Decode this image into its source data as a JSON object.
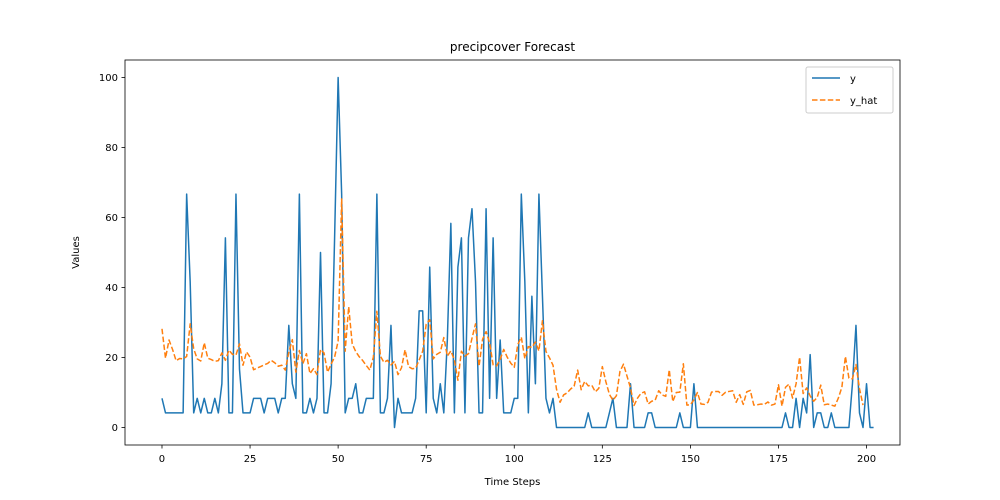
{
  "chart_data": {
    "type": "line",
    "title": "precipcover Forecast",
    "xlabel": "Time Steps",
    "ylabel": "Values",
    "xlim": [
      -10.5,
      209.5
    ],
    "ylim": [
      -5,
      105
    ],
    "xticks": [
      0,
      25,
      50,
      75,
      100,
      125,
      150,
      175,
      200
    ],
    "yticks": [
      0,
      20,
      40,
      60,
      80,
      100
    ],
    "grid": false,
    "legend_position": "top-right",
    "series": [
      {
        "name": "y",
        "color": "#1f77b4",
        "style": "solid",
        "values": [
          8.33,
          4.17,
          4.17,
          4.17,
          4.17,
          4.17,
          4.17,
          66.67,
          41.67,
          4.17,
          8.33,
          4.17,
          8.33,
          4.17,
          4.17,
          8.33,
          4.17,
          12.5,
          54.17,
          4.17,
          4.17,
          66.67,
          16.67,
          4.17,
          4.17,
          4.17,
          8.33,
          8.33,
          8.33,
          4.17,
          8.33,
          8.33,
          8.33,
          4.17,
          8.33,
          8.33,
          29.17,
          12.5,
          8.33,
          66.67,
          4.17,
          4.17,
          8.33,
          4.17,
          8.33,
          50,
          4.17,
          4.17,
          12.5,
          54.17,
          100,
          66.67,
          4.17,
          8.33,
          8.33,
          12.5,
          4.17,
          4.17,
          8.33,
          8.33,
          8.33,
          66.67,
          4.17,
          4.17,
          8.33,
          29.17,
          0,
          8.33,
          4.17,
          4.17,
          4.17,
          4.17,
          8.33,
          33.33,
          33.33,
          4.17,
          45.83,
          8.33,
          4.17,
          12.5,
          4.17,
          25,
          58.33,
          4.17,
          45.83,
          54.17,
          4.17,
          54.17,
          62.5,
          41.67,
          4.17,
          4.17,
          62.5,
          8.33,
          54.17,
          8.33,
          25,
          4.17,
          4.17,
          4.17,
          8.33,
          8.33,
          66.67,
          41.67,
          4.17,
          37.5,
          12.5,
          66.67,
          37.5,
          8.33,
          4.17,
          8.33,
          0,
          0,
          0,
          0,
          0,
          0,
          0,
          0,
          0,
          4.17,
          0,
          0,
          0,
          0,
          0,
          4.17,
          8.33,
          0,
          0,
          0,
          0,
          12.5,
          0,
          0,
          0,
          0,
          4.17,
          4.17,
          0,
          0,
          0,
          0,
          0,
          0,
          0,
          4.17,
          0,
          0,
          0,
          12.5,
          0,
          0,
          0,
          0,
          0,
          0,
          0,
          0,
          0,
          0,
          0,
          0,
          0,
          0,
          0,
          0,
          0,
          0,
          0,
          0,
          0,
          0,
          0,
          0,
          0,
          4.17,
          0,
          0,
          8.33,
          0,
          8.33,
          4.17,
          20.83,
          0,
          4.17,
          4.17,
          0,
          0,
          4.17,
          0,
          0,
          0,
          0,
          0,
          12.5,
          29.17,
          4.17,
          0,
          12.5,
          0,
          0
        ]
      },
      {
        "name": "y_hat",
        "color": "#ff7f0e",
        "style": "dashed",
        "values": [
          28.2,
          19.8,
          25,
          22.3,
          19.1,
          19.7,
          19.6,
          20.3,
          29.6,
          22.5,
          19.6,
          19,
          24.2,
          19.8,
          19.4,
          18.9,
          19.1,
          21.3,
          19.2,
          22.1,
          20.9,
          20.7,
          23.9,
          17.8,
          21.6,
          20.1,
          16.5,
          17,
          17.4,
          17.9,
          18.3,
          19.2,
          18.5,
          17.5,
          17.8,
          16.4,
          21.5,
          25.1,
          15.8,
          22,
          18.2,
          21.1,
          15.4,
          16.8,
          15.1,
          22.3,
          21.3,
          15.8,
          18.1,
          20.1,
          24.7,
          65.3,
          21.8,
          34.5,
          23.9,
          21.7,
          20.2,
          19.1,
          17.7,
          16.4,
          20.1,
          33.2,
          20.4,
          18.6,
          19.2,
          17.9,
          18.9,
          15.1,
          17.1,
          22.2,
          17.4,
          16.8,
          16.9,
          19.3,
          21.8,
          29.5,
          30.8,
          19.6,
          20.9,
          21.5,
          25.7,
          20.4,
          21.9,
          19.3,
          13.5,
          21.8,
          20.4,
          21.1,
          25.5,
          29.6,
          17.5,
          25.2,
          27.4,
          24.2,
          17.9,
          17.6,
          19.5,
          22.3,
          20.1,
          18.4,
          17.2,
          23.7,
          25.8,
          19.7,
          23.1,
          22.9,
          24.4,
          21.9,
          30.5,
          21.7,
          19.9,
          17.8,
          10.9,
          7.2,
          9.3,
          9.9,
          11,
          11.8,
          16.4,
          10.8,
          13.2,
          11.9,
          12.1,
          10.2,
          11.2,
          17.4,
          13.1,
          9.5,
          7.8,
          9.1,
          16,
          18.1,
          14.7,
          11.3,
          6.3,
          8.4,
          9.8,
          10.2,
          6.7,
          7.5,
          7.8,
          10.5,
          9.3,
          8.9,
          16.5,
          7.4,
          10,
          10.1,
          18.2,
          6.4,
          6.5,
          7.9,
          10,
          6.7,
          6.6,
          7.2,
          10.1,
          10.3,
          10.3,
          9.2,
          10.1,
          10.3,
          10.5,
          7.2,
          9.4,
          6.6,
          10.2,
          10.6,
          6.4,
          6.5,
          6.7,
          6.6,
          7.3,
          6.4,
          6.7,
          12.2,
          6.1,
          11.5,
          12.4,
          8.4,
          12.5,
          20.1,
          9.7,
          11.3,
          9,
          7.5,
          8.6,
          12.1,
          6.5,
          6.7,
          6.4,
          6.1,
          8.4,
          11.5,
          20.3,
          14.1,
          13.9,
          18,
          11.1,
          6.4
        ]
      }
    ]
  }
}
